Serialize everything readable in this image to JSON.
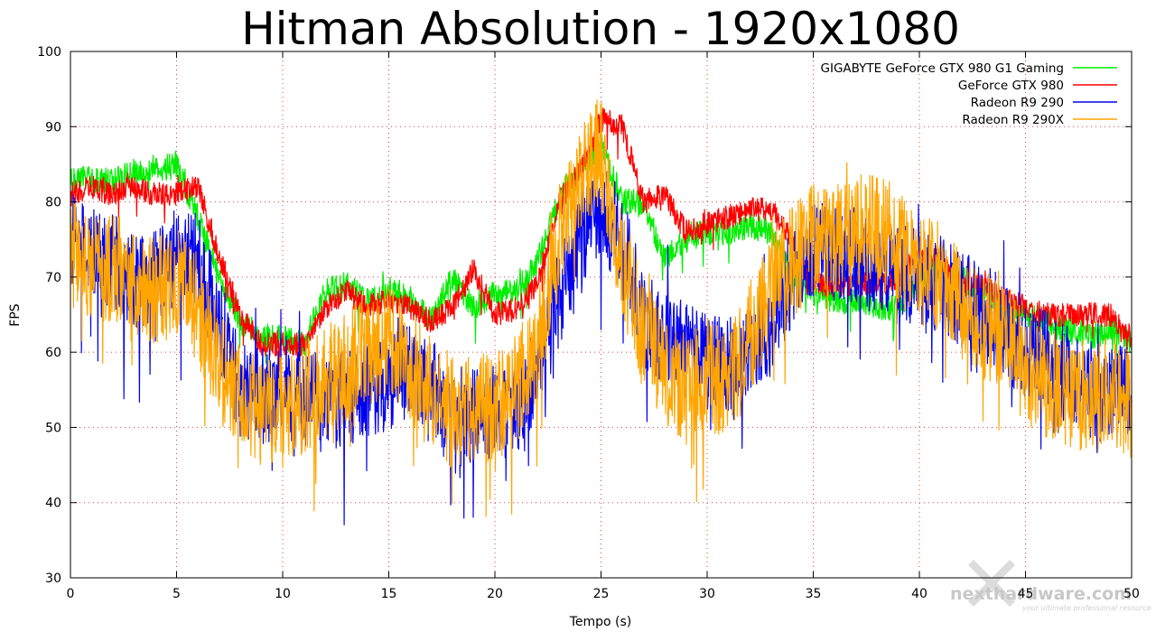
{
  "chart_data": {
    "type": "line",
    "title": "Hitman Absolution - 1920x1080",
    "xlabel": "Tempo (s)",
    "ylabel": "FPS",
    "xlim": [
      0,
      50
    ],
    "ylim": [
      30,
      100
    ],
    "x_ticks": [
      "0",
      "5",
      "10",
      "15",
      "20",
      "25",
      "30",
      "35",
      "40",
      "45",
      "50"
    ],
    "y_ticks": [
      "30",
      "40",
      "50",
      "60",
      "70",
      "80",
      "90",
      "100"
    ],
    "grid": true,
    "legend_position": "top-right",
    "x": [
      0,
      1,
      2,
      3,
      4,
      5,
      6,
      7,
      8,
      9,
      10,
      11,
      12,
      13,
      14,
      15,
      16,
      17,
      18,
      19,
      20,
      21,
      22,
      23,
      24,
      25,
      26,
      27,
      28,
      29,
      30,
      31,
      32,
      33,
      34,
      35,
      36,
      37,
      38,
      39,
      40,
      41,
      42,
      43,
      44,
      45,
      46,
      47,
      48,
      49,
      50
    ],
    "series": [
      {
        "name": "GIGABYTE GeForce GTX 980 G1 Gaming",
        "color": "#00ee00",
        "values": [
          83,
          83,
          83,
          84,
          84,
          85,
          78,
          70,
          64,
          62,
          62,
          61,
          68,
          69,
          67,
          68,
          67,
          64,
          70,
          66,
          68,
          68,
          72,
          80,
          84,
          88,
          80,
          80,
          72,
          75,
          76,
          76,
          77,
          76,
          70,
          68,
          67,
          67,
          66,
          66,
          70,
          71,
          70,
          68,
          66,
          65,
          64,
          63,
          62,
          63,
          61
        ]
      },
      {
        "name": "GeForce GTX 980",
        "color": "#ff0000",
        "values": [
          81,
          82,
          81,
          82,
          81,
          81,
          82,
          73,
          65,
          61,
          61,
          61,
          66,
          68,
          66,
          67,
          66,
          64,
          66,
          71,
          65,
          66,
          69,
          80,
          84,
          91,
          90,
          80,
          81,
          76,
          77,
          78,
          79,
          79,
          75,
          69,
          69,
          69,
          69,
          70,
          73,
          72,
          69,
          69,
          67,
          66,
          65,
          65,
          65,
          65,
          62
        ]
      },
      {
        "name": "Radeon R9 290",
        "color": "#0000ee",
        "values": [
          75,
          73,
          72,
          70,
          70,
          73,
          72,
          64,
          55,
          54,
          54,
          54,
          53,
          54,
          55,
          56,
          58,
          56,
          50,
          52,
          52,
          53,
          57,
          67,
          75,
          79,
          75,
          64,
          62,
          60,
          60,
          58,
          60,
          64,
          70,
          74,
          73,
          73,
          71,
          70,
          70,
          69,
          67,
          66,
          63,
          60,
          59,
          57,
          55,
          55,
          54
        ]
      },
      {
        "name": "Radeon R9 290X",
        "color": "#ffa500",
        "values": [
          73,
          72,
          71,
          70,
          68,
          69,
          66,
          58,
          54,
          52,
          52,
          54,
          56,
          58,
          60,
          62,
          58,
          55,
          52,
          52,
          53,
          55,
          60,
          75,
          82,
          87,
          72,
          62,
          58,
          55,
          57,
          55,
          62,
          68,
          72,
          75,
          75,
          76,
          77,
          74,
          71,
          70,
          66,
          64,
          62,
          58,
          56,
          55,
          54,
          55,
          53
        ]
      }
    ]
  },
  "watermark": {
    "brand": "nexthardware.com",
    "tagline": "your ultimate professional resource"
  }
}
